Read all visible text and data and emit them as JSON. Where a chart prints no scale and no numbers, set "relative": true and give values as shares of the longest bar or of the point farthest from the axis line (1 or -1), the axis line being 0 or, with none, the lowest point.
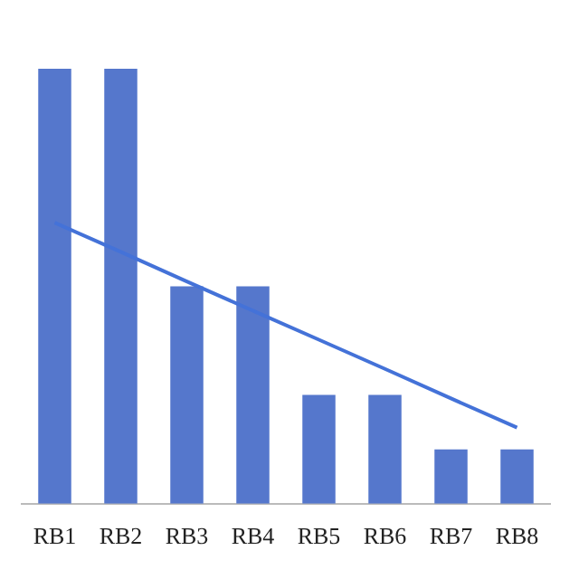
{
  "chart_data": {
    "type": "bar",
    "relative": true,
    "categories": [
      "RB1",
      "RB2",
      "RB3",
      "RB4",
      "RB5",
      "RB6",
      "RB7",
      "RB8"
    ],
    "series": [
      {
        "color": "#5577cc",
        "values": [
          1,
          1,
          0.5,
          0.5,
          0.25,
          0.25,
          0.125,
          0.125
        ]
      },
      {
        "type": "line",
        "color": "#4472d8",
        "marker": "none",
        "values": [
          0.646,
          0.579,
          0.511,
          0.444,
          0.377,
          0.31,
          0.242,
          0.175
        ]
      }
    ],
    "legend": false
  }
}
